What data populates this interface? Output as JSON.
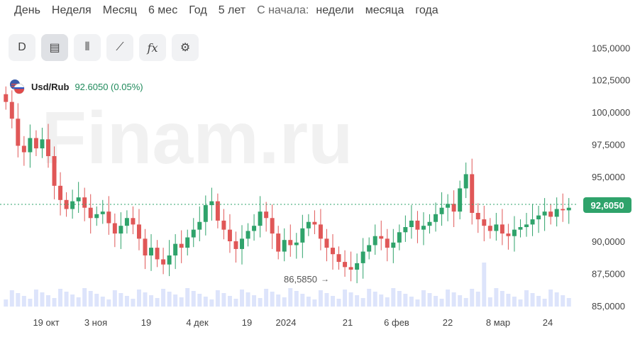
{
  "periods": [
    "День",
    "Неделя",
    "Месяц",
    "6 мес",
    "Год",
    "5 лет"
  ],
  "since_label": "С начала:",
  "since_items": [
    "недели",
    "месяца",
    "года"
  ],
  "toolbar": [
    {
      "name": "d-button",
      "label": "D"
    },
    {
      "name": "chart-type-icon",
      "label": "▤"
    },
    {
      "name": "candles-icon",
      "label": "⫴"
    },
    {
      "name": "draw-line-icon",
      "label": "⟋"
    },
    {
      "name": "indicators-icon",
      "label": "fx"
    },
    {
      "name": "settings-icon",
      "label": "⚙"
    }
  ],
  "instrument": {
    "name": "Usd/Rub",
    "price": "92.6050 (0.05%)"
  },
  "watermark": "Finam.ru",
  "current_price_tag": "92,6050",
  "low_marker": "86,5850",
  "colors": {
    "up": "#2fa36b",
    "down": "#e05757",
    "volume": "#dde4fb"
  },
  "chart_data": {
    "type": "candlestick",
    "y_ticks": [
      "105,0000",
      "102,5000",
      "100,0000",
      "97,5000",
      "95,0000",
      "92,6050",
      "90,0000",
      "87,5000",
      "85,0000"
    ],
    "x_ticks": [
      "19 окт",
      "3 ноя",
      "19",
      "4 дек",
      "19",
      "2024",
      "21",
      "6 фев",
      "22",
      "8 мар",
      "24"
    ],
    "ylim": [
      84.5,
      106.5
    ],
    "closes": [
      100.8,
      99.5,
      97.4,
      96.9,
      98.0,
      97.2,
      97.9,
      96.6,
      94.3,
      93.2,
      92.5,
      93.1,
      93.4,
      92.6,
      91.8,
      92.1,
      92.3,
      91.4,
      90.6,
      91.2,
      91.8,
      91.3,
      90.2,
      88.9,
      89.5,
      88.6,
      88.2,
      88.9,
      89.8,
      89.5,
      90.3,
      90.9,
      91.5,
      92.8,
      93.1,
      91.6,
      90.9,
      90.0,
      89.4,
      90.2,
      90.8,
      91.2,
      92.3,
      91.8,
      90.6,
      89.2,
      90.1,
      89.7,
      89.9,
      91.0,
      91.5,
      91.3,
      90.2,
      89.5,
      89.0,
      88.4,
      88.0,
      87.8,
      88.3,
      89.2,
      89.7,
      90.4,
      90.2,
      89.5,
      89.9,
      90.7,
      91.1,
      91.6,
      90.9,
      91.2,
      91.5,
      92.1,
      92.6,
      92.9,
      92.3,
      94.1,
      95.2,
      92.2,
      91.7,
      91.2,
      90.8,
      91.3,
      90.6,
      90.4,
      90.9,
      91.1,
      91.3,
      91.7,
      92.0,
      92.3,
      91.9,
      92.5,
      92.4,
      92.6
    ]
  }
}
